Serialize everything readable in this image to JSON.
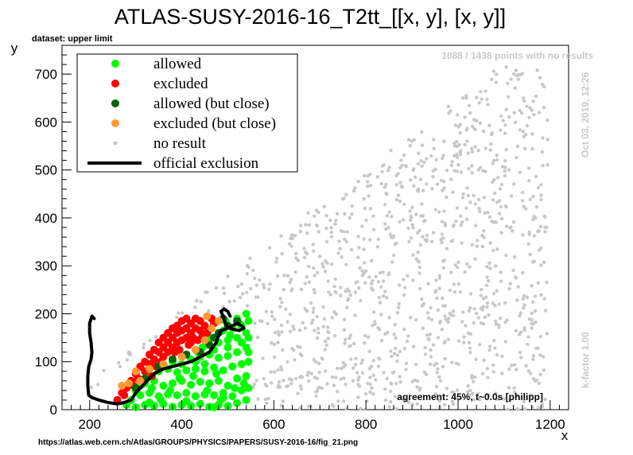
{
  "chart_data": {
    "type": "scatter",
    "title": "ATLAS-SUSY-2016-16_T2tt_[[x, y], [x, y]]",
    "dataset_label": "dataset: upper limit",
    "xlabel": "x",
    "ylabel": "y",
    "xlim": [
      140,
      1240
    ],
    "ylim": [
      0,
      760
    ],
    "x_ticks": [
      200,
      400,
      600,
      800,
      1000,
      1200
    ],
    "y_ticks": [
      0,
      100,
      200,
      300,
      400,
      500,
      600,
      700
    ],
    "grid": false,
    "legend_position": "top-left",
    "legend": [
      {
        "label": "allowed",
        "color": "#00ff00",
        "marker": "dot"
      },
      {
        "label": "excluded",
        "color": "#ff0000",
        "marker": "dot"
      },
      {
        "label": "allowed (but close)",
        "color": "#006400",
        "marker": "dot"
      },
      {
        "label": "excluded (but close)",
        "color": "#ff9933",
        "marker": "dot"
      },
      {
        "label": "no result",
        "color": "#c8c8c8",
        "marker": "small-dot"
      },
      {
        "label": "official exclusion",
        "color": "#000000",
        "marker": "line"
      }
    ],
    "annotations": {
      "no_results": "1088 / 1438 points with no results",
      "date": "Oct 03, 2019, 12:26",
      "kfactor": "k-factor 1.00",
      "agreement": "agreement: 45%, t~0.0s [philipp]",
      "source_url": "https://atlas.web.cern.ch/Atlas/GROUPS/PHYSICS/PAPERS/SUSY-2016-16/fig_21.png"
    },
    "series": [
      {
        "name": "allowed",
        "color": "#00ff00",
        "points": [
          [
            300,
            5
          ],
          [
            320,
            10
          ],
          [
            340,
            8
          ],
          [
            360,
            12
          ],
          [
            380,
            6
          ],
          [
            400,
            10
          ],
          [
            420,
            8
          ],
          [
            440,
            12
          ],
          [
            460,
            6
          ],
          [
            480,
            10
          ],
          [
            500,
            8
          ],
          [
            520,
            14
          ],
          [
            540,
            20
          ],
          [
            310,
            30
          ],
          [
            330,
            35
          ],
          [
            350,
            28
          ],
          [
            370,
            32
          ],
          [
            390,
            30
          ],
          [
            410,
            35
          ],
          [
            430,
            28
          ],
          [
            450,
            32
          ],
          [
            470,
            30
          ],
          [
            490,
            35
          ],
          [
            510,
            28
          ],
          [
            530,
            40
          ],
          [
            545,
            45
          ],
          [
            320,
            55
          ],
          [
            340,
            60
          ],
          [
            360,
            50
          ],
          [
            380,
            55
          ],
          [
            400,
            60
          ],
          [
            420,
            52
          ],
          [
            440,
            58
          ],
          [
            460,
            55
          ],
          [
            480,
            60
          ],
          [
            500,
            50
          ],
          [
            520,
            65
          ],
          [
            540,
            70
          ],
          [
            350,
            80
          ],
          [
            370,
            85
          ],
          [
            390,
            78
          ],
          [
            410,
            82
          ],
          [
            430,
            85
          ],
          [
            450,
            80
          ],
          [
            470,
            88
          ],
          [
            490,
            82
          ],
          [
            510,
            90
          ],
          [
            530,
            95
          ],
          [
            545,
            100
          ],
          [
            420,
            105
          ],
          [
            440,
            110
          ],
          [
            460,
            115
          ],
          [
            480,
            108
          ],
          [
            500,
            112
          ],
          [
            520,
            120
          ],
          [
            540,
            130
          ],
          [
            460,
            135
          ],
          [
            480,
            140
          ],
          [
            500,
            145
          ],
          [
            520,
            150
          ],
          [
            540,
            160
          ],
          [
            490,
            165
          ],
          [
            510,
            170
          ],
          [
            530,
            175
          ],
          [
            545,
            185
          ],
          [
            520,
            190
          ],
          [
            540,
            200
          ],
          [
            280,
            10
          ],
          [
            290,
            20
          ],
          [
            300,
            40
          ],
          [
            310,
            50
          ],
          [
            330,
            70
          ],
          [
            360,
            95
          ],
          [
            380,
            100
          ],
          [
            400,
            95
          ],
          [
            430,
            100
          ],
          [
            470,
            125
          ],
          [
            500,
            130
          ],
          [
            530,
            140
          ],
          [
            525,
            180
          ],
          [
            505,
            155
          ],
          [
            450,
            95
          ],
          [
            395,
            65
          ],
          [
            375,
            40
          ],
          [
            355,
            20
          ],
          [
            335,
            45
          ],
          [
            425,
            70
          ],
          [
            455,
            40
          ],
          [
            485,
            20
          ],
          [
            515,
            45
          ],
          [
            535,
            55
          ],
          [
            475,
            75
          ],
          [
            445,
            130
          ],
          [
            435,
            120
          ],
          [
            465,
            150
          ],
          [
            495,
            185
          ],
          [
            545,
            150
          ],
          [
            545,
            120
          ],
          [
            330,
            15
          ],
          [
            410,
            18
          ],
          [
            490,
            25
          ],
          [
            470,
            5
          ]
        ]
      },
      {
        "name": "excluded",
        "color": "#ff0000",
        "points": [
          [
            260,
            20
          ],
          [
            270,
            35
          ],
          [
            280,
            45
          ],
          [
            290,
            60
          ],
          [
            300,
            75
          ],
          [
            310,
            90
          ],
          [
            320,
            100
          ],
          [
            330,
            115
          ],
          [
            340,
            125
          ],
          [
            350,
            140
          ],
          [
            360,
            150
          ],
          [
            370,
            160
          ],
          [
            380,
            170
          ],
          [
            390,
            175
          ],
          [
            400,
            185
          ],
          [
            410,
            190
          ],
          [
            420,
            180
          ],
          [
            430,
            190
          ],
          [
            440,
            185
          ],
          [
            450,
            175
          ],
          [
            320,
            80
          ],
          [
            330,
            95
          ],
          [
            340,
            105
          ],
          [
            350,
            120
          ],
          [
            360,
            130
          ],
          [
            370,
            140
          ],
          [
            380,
            150
          ],
          [
            390,
            160
          ],
          [
            400,
            165
          ],
          [
            410,
            170
          ],
          [
            420,
            160
          ],
          [
            430,
            170
          ],
          [
            440,
            165
          ],
          [
            360,
            110
          ],
          [
            370,
            120
          ],
          [
            380,
            130
          ],
          [
            390,
            140
          ],
          [
            400,
            145
          ],
          [
            410,
            150
          ],
          [
            420,
            140
          ],
          [
            345,
            90
          ],
          [
            355,
            100
          ],
          [
            335,
            70
          ],
          [
            385,
            120
          ],
          [
            395,
            125
          ],
          [
            415,
            135
          ],
          [
            425,
            150
          ],
          [
            435,
            145
          ],
          [
            445,
            155
          ],
          [
            455,
            160
          ],
          [
            465,
            190
          ],
          [
            470,
            180
          ],
          [
            305,
            65
          ],
          [
            295,
            50
          ],
          [
            275,
            30
          ]
        ]
      },
      {
        "name": "allowed (but close)",
        "color": "#006400",
        "points": [
          [
            300,
            45
          ],
          [
            320,
            65
          ],
          [
            350,
            90
          ],
          [
            380,
            105
          ],
          [
            410,
            115
          ],
          [
            440,
            120
          ],
          [
            460,
            135
          ],
          [
            480,
            160
          ],
          [
            500,
            175
          ],
          [
            470,
            150
          ],
          [
            490,
            190
          ],
          [
            520,
            185
          ]
        ]
      },
      {
        "name": "excluded (but close)",
        "color": "#ff9933",
        "points": [
          [
            270,
            50
          ],
          [
            285,
            55
          ],
          [
            300,
            80
          ],
          [
            330,
            85
          ],
          [
            360,
            95
          ],
          [
            400,
            110
          ],
          [
            430,
            125
          ],
          [
            450,
            145
          ],
          [
            465,
            170
          ],
          [
            480,
            185
          ],
          [
            455,
            195
          ],
          [
            310,
            60
          ]
        ]
      }
    ],
    "official_exclusion": [
      [
        210,
        190
      ],
      [
        205,
        195
      ],
      [
        200,
        180
      ],
      [
        200,
        160
      ],
      [
        203,
        140
      ],
      [
        205,
        120
      ],
      [
        203,
        105
      ],
      [
        198,
        90
      ],
      [
        196,
        70
      ],
      [
        196,
        50
      ],
      [
        198,
        30
      ],
      [
        205,
        25
      ],
      [
        220,
        20
      ],
      [
        240,
        15
      ],
      [
        260,
        12
      ],
      [
        275,
        15
      ],
      [
        290,
        20
      ],
      [
        300,
        35
      ],
      [
        310,
        45
      ],
      [
        320,
        55
      ],
      [
        330,
        65
      ],
      [
        340,
        75
      ],
      [
        360,
        85
      ],
      [
        380,
        90
      ],
      [
        400,
        95
      ],
      [
        420,
        100
      ],
      [
        440,
        110
      ],
      [
        460,
        120
      ],
      [
        475,
        140
      ],
      [
        480,
        155
      ],
      [
        485,
        165
      ],
      [
        500,
        170
      ],
      [
        510,
        175
      ],
      [
        520,
        180
      ],
      [
        530,
        175
      ],
      [
        535,
        170
      ],
      [
        525,
        165
      ],
      [
        510,
        168
      ],
      [
        500,
        172
      ],
      [
        495,
        180
      ],
      [
        490,
        195
      ],
      [
        485,
        205
      ],
      [
        492,
        210
      ],
      [
        500,
        205
      ],
      [
        505,
        195
      ]
    ],
    "no_result_regions": {
      "count": 1088
    }
  }
}
